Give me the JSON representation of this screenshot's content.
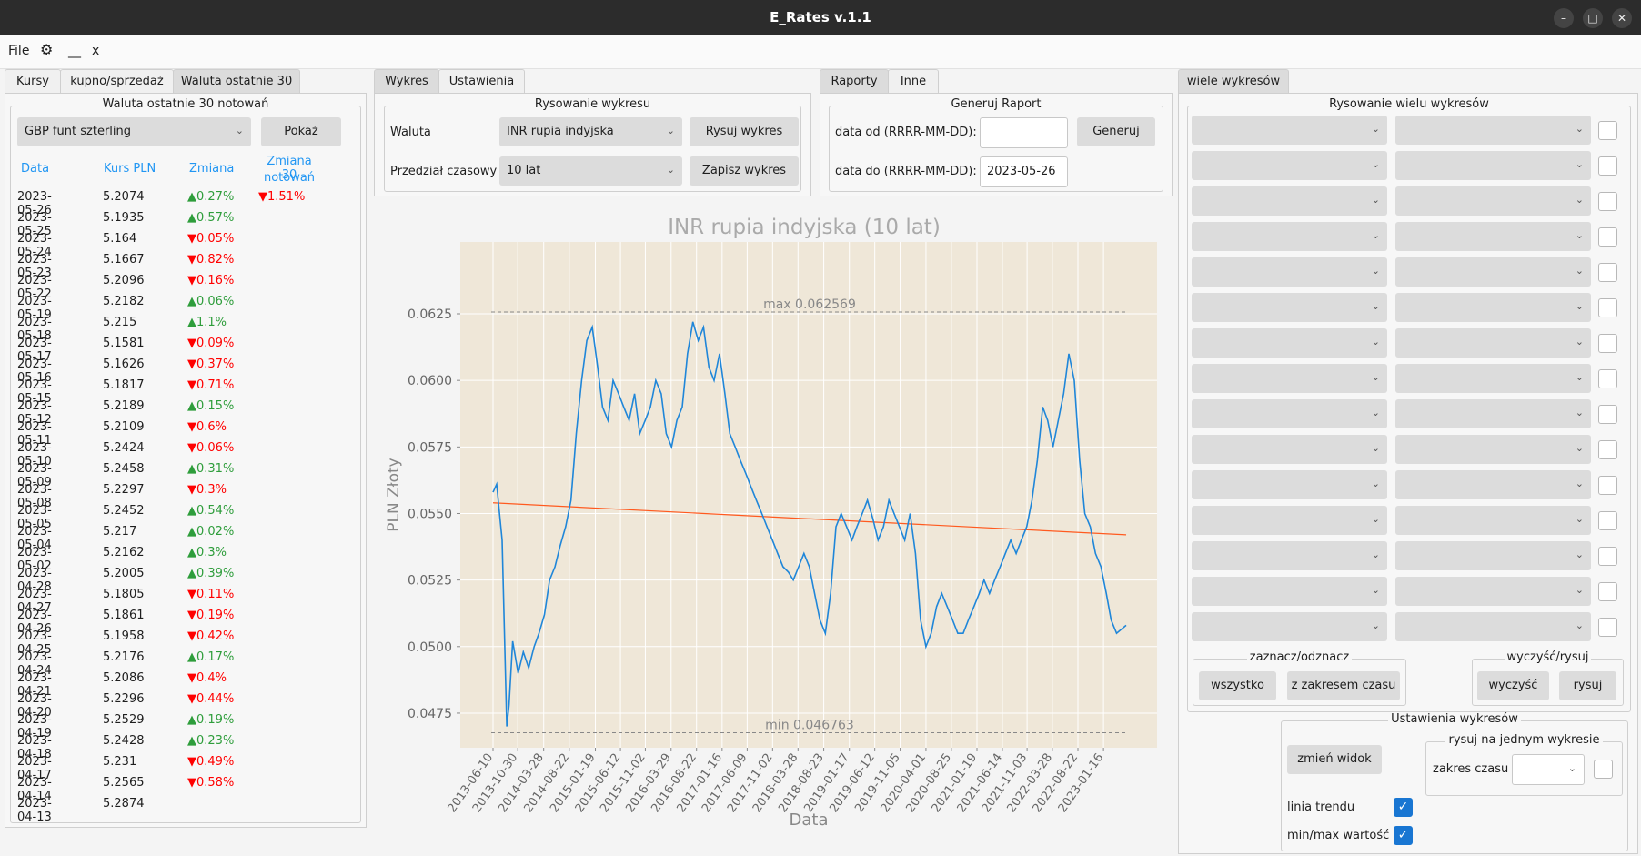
{
  "window": {
    "title": "E_Rates v.1.1"
  },
  "menu": {
    "file": "File",
    "gear": "⚙",
    "minimize": "__",
    "close": "x"
  },
  "left_tabs": [
    "Kursy",
    "kupno/sprzedaż",
    "Waluta ostatnie 30"
  ],
  "last30": {
    "group_title": "Waluta ostatnie 30 notowań",
    "currency": "GBP  funt szterling",
    "show_button": "Pokaż",
    "headers": {
      "date": "Data",
      "rate": "Kurs PLN",
      "change": "Zmiana",
      "change30_line1": "Zmiana 30",
      "change30_line2": "notowań"
    },
    "change30": {
      "dir": "down",
      "value": "1.51%"
    },
    "rows": [
      {
        "date": "2023-05-26",
        "rate": "5.2074",
        "dir": "up",
        "change": "0.27%"
      },
      {
        "date": "2023-05-25",
        "rate": "5.1935",
        "dir": "up",
        "change": "0.57%"
      },
      {
        "date": "2023-05-24",
        "rate": "5.164",
        "dir": "down",
        "change": "0.05%"
      },
      {
        "date": "2023-05-23",
        "rate": "5.1667",
        "dir": "down",
        "change": "0.82%"
      },
      {
        "date": "2023-05-22",
        "rate": "5.2096",
        "dir": "down",
        "change": "0.16%"
      },
      {
        "date": "2023-05-19",
        "rate": "5.2182",
        "dir": "up",
        "change": "0.06%"
      },
      {
        "date": "2023-05-18",
        "rate": "5.215",
        "dir": "up",
        "change": "1.1%"
      },
      {
        "date": "2023-05-17",
        "rate": "5.1581",
        "dir": "down",
        "change": "0.09%"
      },
      {
        "date": "2023-05-16",
        "rate": "5.1626",
        "dir": "down",
        "change": "0.37%"
      },
      {
        "date": "2023-05-15",
        "rate": "5.1817",
        "dir": "down",
        "change": "0.71%"
      },
      {
        "date": "2023-05-12",
        "rate": "5.2189",
        "dir": "up",
        "change": "0.15%"
      },
      {
        "date": "2023-05-11",
        "rate": "5.2109",
        "dir": "down",
        "change": "0.6%"
      },
      {
        "date": "2023-05-10",
        "rate": "5.2424",
        "dir": "down",
        "change": "0.06%"
      },
      {
        "date": "2023-05-09",
        "rate": "5.2458",
        "dir": "up",
        "change": "0.31%"
      },
      {
        "date": "2023-05-08",
        "rate": "5.2297",
        "dir": "down",
        "change": "0.3%"
      },
      {
        "date": "2023-05-05",
        "rate": "5.2452",
        "dir": "up",
        "change": "0.54%"
      },
      {
        "date": "2023-05-04",
        "rate": "5.217",
        "dir": "up",
        "change": "0.02%"
      },
      {
        "date": "2023-05-02",
        "rate": "5.2162",
        "dir": "up",
        "change": "0.3%"
      },
      {
        "date": "2023-04-28",
        "rate": "5.2005",
        "dir": "up",
        "change": "0.39%"
      },
      {
        "date": "2023-04-27",
        "rate": "5.1805",
        "dir": "down",
        "change": "0.11%"
      },
      {
        "date": "2023-04-26",
        "rate": "5.1861",
        "dir": "down",
        "change": "0.19%"
      },
      {
        "date": "2023-04-25",
        "rate": "5.1958",
        "dir": "down",
        "change": "0.42%"
      },
      {
        "date": "2023-04-24",
        "rate": "5.2176",
        "dir": "up",
        "change": "0.17%"
      },
      {
        "date": "2023-04-21",
        "rate": "5.2086",
        "dir": "down",
        "change": "0.4%"
      },
      {
        "date": "2023-04-20",
        "rate": "5.2296",
        "dir": "down",
        "change": "0.44%"
      },
      {
        "date": "2023-04-19",
        "rate": "5.2529",
        "dir": "up",
        "change": "0.19%"
      },
      {
        "date": "2023-04-18",
        "rate": "5.2428",
        "dir": "up",
        "change": "0.23%"
      },
      {
        "date": "2023-04-17",
        "rate": "5.231",
        "dir": "down",
        "change": "0.49%"
      },
      {
        "date": "2023-04-14",
        "rate": "5.2565",
        "dir": "down",
        "change": "0.58%"
      },
      {
        "date": "2023-04-13",
        "rate": "5.2874",
        "dir": "",
        "change": ""
      }
    ]
  },
  "mid_tabs": [
    "Wykres",
    "Ustawienia"
  ],
  "chart_controls": {
    "group_title": "Rysowanie wykresu",
    "currency_label": "Waluta",
    "currency_value": "INR  rupia indyjska",
    "period_label": "Przedział czasowy",
    "period_value": "10 lat",
    "draw_button": "Rysuj wykres",
    "save_button": "Zapisz wykres"
  },
  "report_tabs": [
    "Raporty",
    "Inne"
  ],
  "report": {
    "group_title": "Generuj Raport",
    "from_label": "data od (RRRR-MM-DD):",
    "from_value": "",
    "to_label": "data do (RRRR-MM-DD):",
    "to_value": "2023-05-26",
    "generate_button": "Generuj"
  },
  "multi_tabs": [
    "wiele wykresów"
  ],
  "multi": {
    "group_title": "Rysowanie wielu wykresów",
    "row_count": 15,
    "select_group_title": "zaznacz/odznacz",
    "all_button": "wszystko",
    "range_button": "z zakresem czasu",
    "clear_group_title": "wyczyść/rysuj",
    "clear_button": "wyczyść",
    "draw_button": "rysuj",
    "settings_title": "Ustawienia wykresów",
    "change_view_button": "zmień widok",
    "one_chart_title": "rysuj na jednym wykresie",
    "time_range_label": "zakres czasu",
    "trend_label": "linia trendu",
    "minmax_label": "min/max wartość"
  },
  "chart_data": {
    "type": "line",
    "title": "INR rupia indyjska (10 lat)",
    "xlabel": "Data",
    "ylabel": "PLN Złoty",
    "ylim": [
      0.0462,
      0.0652
    ],
    "yticks": [
      "0.0475",
      "0.0500",
      "0.0525",
      "0.0550",
      "0.0575",
      "0.0600",
      "0.0625"
    ],
    "xticks": [
      "2013-06-10",
      "2013-10-30",
      "2014-03-28",
      "2014-08-22",
      "2015-01-19",
      "2015-06-12",
      "2015-11-02",
      "2016-03-29",
      "2016-08-22",
      "2017-01-16",
      "2017-06-09",
      "2017-11-02",
      "2018-03-28",
      "2018-08-23",
      "2019-01-17",
      "2019-06-12",
      "2019-11-05",
      "2020-04-01",
      "2020-08-25",
      "2021-01-19",
      "2021-06-14",
      "2021-11-03",
      "2022-03-28",
      "2022-08-22",
      "2023-01-16"
    ],
    "max_label": "max 0.062569",
    "min_label": "min 0.046763",
    "max": 0.062569,
    "min": 0.046763,
    "trend": {
      "start": 0.0554,
      "end": 0.0542
    },
    "series": [
      {
        "x": [
          "2013-06-10",
          "2013-07-01",
          "2013-08-01",
          "2013-08-28",
          "2013-09-10",
          "2013-10-01",
          "2013-11-01",
          "2013-12-01",
          "2014-01-01",
          "2014-02-01",
          "2014-03-01",
          "2014-04-01",
          "2014-05-01",
          "2014-06-01",
          "2014-07-01",
          "2014-08-01",
          "2014-09-01",
          "2014-10-01",
          "2014-11-01",
          "2014-12-01",
          "2015-01-01",
          "2015-02-01",
          "2015-03-01",
          "2015-04-01",
          "2015-05-01",
          "2015-06-01",
          "2015-07-01",
          "2015-08-01",
          "2015-09-01",
          "2015-10-01",
          "2015-11-01",
          "2015-12-01",
          "2016-01-01",
          "2016-02-01",
          "2016-03-01",
          "2016-04-01",
          "2016-05-01",
          "2016-06-01",
          "2016-07-01",
          "2016-08-01",
          "2016-09-01",
          "2016-10-01",
          "2016-11-01",
          "2016-12-01",
          "2017-01-01",
          "2017-02-01",
          "2017-03-01",
          "2017-04-01",
          "2017-05-01",
          "2017-06-01",
          "2017-07-01",
          "2017-08-01",
          "2017-09-01",
          "2017-10-01",
          "2017-11-01",
          "2017-12-01",
          "2018-01-01",
          "2018-02-01",
          "2018-03-01",
          "2018-04-01",
          "2018-05-01",
          "2018-06-01",
          "2018-07-01",
          "2018-08-01",
          "2018-09-01",
          "2018-10-01",
          "2018-11-01",
          "2018-12-01",
          "2019-01-01",
          "2019-02-01",
          "2019-03-01",
          "2019-04-01",
          "2019-05-01",
          "2019-06-01",
          "2019-07-01",
          "2019-08-01",
          "2019-09-01",
          "2019-10-01",
          "2019-11-01",
          "2019-12-01",
          "2020-01-01",
          "2020-02-01",
          "2020-03-01",
          "2020-04-01",
          "2020-05-01",
          "2020-06-01",
          "2020-07-01",
          "2020-08-01",
          "2020-09-01",
          "2020-10-01",
          "2020-11-01",
          "2020-12-01",
          "2021-01-01",
          "2021-02-01",
          "2021-03-01",
          "2021-04-01",
          "2021-05-01",
          "2021-06-01",
          "2021-07-01",
          "2021-08-01",
          "2021-09-01",
          "2021-10-01",
          "2021-11-01",
          "2021-12-01",
          "2022-01-01",
          "2022-02-01",
          "2022-03-01",
          "2022-04-01",
          "2022-05-01",
          "2022-06-01",
          "2022-07-01",
          "2022-08-01",
          "2022-09-01",
          "2022-10-01",
          "2022-11-01",
          "2022-12-01",
          "2023-01-01",
          "2023-02-01",
          "2023-03-01",
          "2023-04-01",
          "2023-05-26"
        ],
        "values": [
          0.0558,
          0.0561,
          0.054,
          0.047,
          0.0478,
          0.0502,
          0.049,
          0.0498,
          0.0492,
          0.05,
          0.0505,
          0.0512,
          0.0525,
          0.053,
          0.0538,
          0.0545,
          0.0555,
          0.058,
          0.06,
          0.0615,
          0.062,
          0.0605,
          0.059,
          0.0585,
          0.06,
          0.0595,
          0.059,
          0.0585,
          0.0595,
          0.058,
          0.0585,
          0.059,
          0.06,
          0.0595,
          0.058,
          0.0575,
          0.0585,
          0.059,
          0.061,
          0.0622,
          0.0615,
          0.062,
          0.0605,
          0.06,
          0.061,
          0.0595,
          0.058,
          0.0575,
          0.057,
          0.0565,
          0.056,
          0.0555,
          0.055,
          0.0545,
          0.054,
          0.0535,
          0.053,
          0.0528,
          0.0525,
          0.053,
          0.0535,
          0.053,
          0.052,
          0.051,
          0.0505,
          0.052,
          0.0545,
          0.055,
          0.0545,
          0.054,
          0.0545,
          0.055,
          0.0555,
          0.0548,
          0.054,
          0.0545,
          0.0555,
          0.055,
          0.0545,
          0.054,
          0.055,
          0.0535,
          0.051,
          0.05,
          0.0505,
          0.0515,
          0.052,
          0.0515,
          0.051,
          0.0505,
          0.0505,
          0.051,
          0.0515,
          0.052,
          0.0525,
          0.052,
          0.0525,
          0.053,
          0.0535,
          0.054,
          0.0535,
          0.054,
          0.0545,
          0.0555,
          0.057,
          0.059,
          0.0585,
          0.0575,
          0.0585,
          0.0595,
          0.061,
          0.06,
          0.057,
          0.055,
          0.0545,
          0.0535,
          0.053,
          0.052,
          0.051,
          0.0505,
          0.0508
        ]
      }
    ]
  }
}
